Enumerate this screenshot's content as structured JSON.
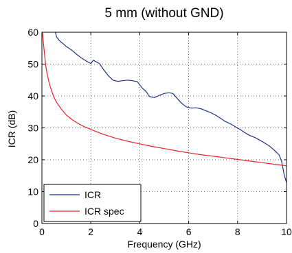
{
  "chart_data": {
    "type": "line",
    "title": "5 mm (without GND)",
    "xlabel": "Frequency (GHz)",
    "ylabel": "ICR (dB)",
    "xlim": [
      0,
      10
    ],
    "ylim": [
      0,
      60
    ],
    "xticks": [
      "0",
      "2",
      "4",
      "6",
      "8",
      "10"
    ],
    "yticks": [
      "0",
      "10",
      "20",
      "30",
      "40",
      "50",
      "60"
    ],
    "grid": "dotted",
    "legend_position": "bottom-left",
    "series": [
      {
        "name": "ICR",
        "color": "#1f2f8f",
        "x": [
          0.55,
          0.6,
          0.7,
          0.8,
          0.9,
          1.0,
          1.2,
          1.4,
          1.6,
          1.8,
          2.0,
          2.1,
          2.2,
          2.35,
          2.5,
          2.7,
          2.9,
          3.1,
          3.3,
          3.5,
          3.7,
          3.9,
          4.0,
          4.1,
          4.25,
          4.4,
          4.6,
          4.8,
          5.0,
          5.2,
          5.35,
          5.5,
          5.7,
          5.9,
          6.1,
          6.3,
          6.5,
          6.7,
          6.9,
          7.1,
          7.3,
          7.5,
          7.7,
          7.9,
          8.1,
          8.3,
          8.5,
          8.7,
          8.9,
          9.1,
          9.3,
          9.5,
          9.7,
          9.8,
          9.9,
          10.0
        ],
        "y": [
          60,
          58.5,
          57.5,
          56.8,
          56.2,
          55.5,
          54.5,
          53.2,
          52,
          51,
          50.2,
          51.2,
          50.8,
          50.2,
          48.5,
          46.5,
          45.0,
          44.6,
          44.8,
          45.0,
          44.8,
          44.5,
          43.5,
          42.5,
          41.5,
          39.8,
          39.5,
          40.2,
          40.8,
          41.0,
          40.8,
          39.5,
          37.8,
          36.6,
          36.2,
          36.3,
          36.0,
          35.4,
          34.8,
          34.0,
          33.0,
          32.0,
          31.3,
          30.4,
          29.5,
          28.5,
          27.6,
          27.0,
          26.2,
          25.3,
          24.3,
          23.0,
          21.5,
          19.5,
          15.5,
          12.8
        ]
      },
      {
        "name": "ICR spec",
        "color": "#e8202a",
        "x": [
          0.02,
          0.05,
          0.1,
          0.15,
          0.2,
          0.3,
          0.4,
          0.5,
          0.6,
          0.8,
          1.0,
          1.25,
          1.5,
          1.75,
          2.0,
          2.5,
          3.0,
          3.5,
          4.0,
          4.5,
          5.0,
          5.5,
          6.0,
          6.5,
          7.0,
          7.5,
          8.0,
          8.5,
          9.0,
          9.5,
          10.0
        ],
        "y": [
          60,
          57.5,
          53.5,
          50.0,
          47.5,
          44.0,
          41.5,
          39.5,
          38.0,
          35.8,
          34.0,
          32.5,
          31.3,
          30.3,
          29.5,
          28.0,
          26.8,
          25.8,
          25.0,
          24.2,
          23.5,
          22.8,
          22.2,
          21.6,
          21.1,
          20.6,
          20.1,
          19.6,
          19.1,
          18.6,
          18.1
        ]
      }
    ]
  }
}
